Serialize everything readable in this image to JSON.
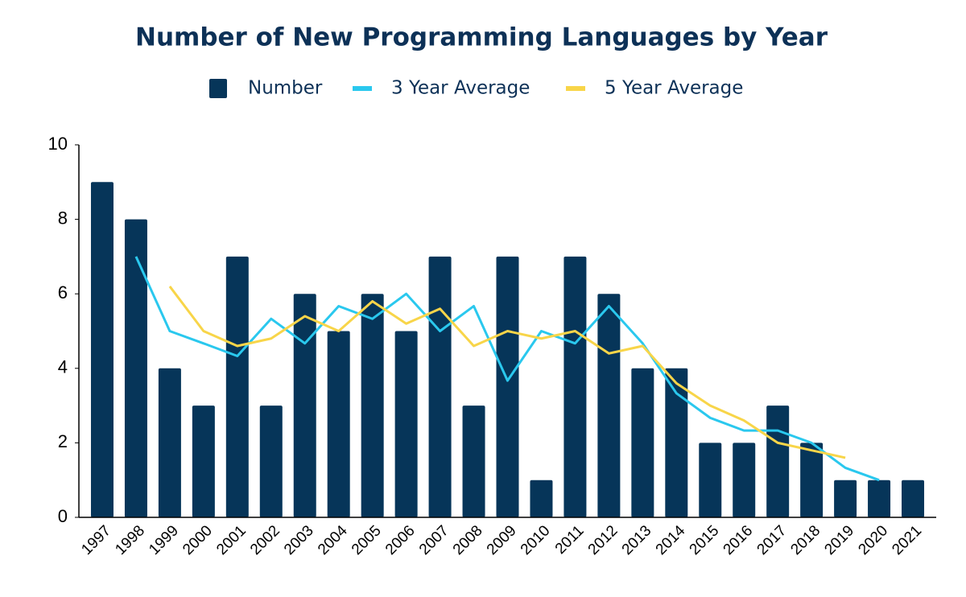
{
  "chart_data": {
    "type": "bar",
    "title": "Number of New Programming Languages by Year",
    "categories": [
      "1997",
      "1998",
      "1999",
      "2000",
      "2001",
      "2002",
      "2003",
      "2004",
      "2005",
      "2006",
      "2007",
      "2008",
      "2009",
      "2010",
      "2011",
      "2012",
      "2013",
      "2014",
      "2015",
      "2016",
      "2017",
      "2018",
      "2019",
      "2020",
      "2021"
    ],
    "series": [
      {
        "name": "Number",
        "type": "bar",
        "color": "#063559",
        "values": [
          9,
          8,
          4,
          3,
          7,
          3,
          6,
          5,
          6,
          5,
          7,
          3,
          7,
          1,
          7,
          6,
          4,
          4,
          2,
          2,
          3,
          2,
          1,
          1,
          1
        ]
      },
      {
        "name": "3 Year Average",
        "type": "line",
        "color": "#2ac8ee",
        "values": [
          null,
          7,
          5,
          4.67,
          4.33,
          5.33,
          4.67,
          5.67,
          5.33,
          6,
          5,
          5.67,
          3.67,
          5,
          4.67,
          5.67,
          4.67,
          3.33,
          2.67,
          2.33,
          2.33,
          2,
          1.33,
          1,
          null
        ]
      },
      {
        "name": "5 Year Average",
        "type": "line",
        "color": "#f8d549",
        "values": [
          null,
          null,
          6.2,
          5,
          4.6,
          4.8,
          5.4,
          5,
          5.8,
          5.2,
          5.6,
          4.6,
          5,
          4.8,
          5,
          4.4,
          4.6,
          3.6,
          3,
          2.6,
          2,
          1.8,
          1.6,
          null,
          null
        ]
      }
    ],
    "ylim": [
      0,
      10
    ],
    "yticks": [
      0,
      2,
      4,
      6,
      8,
      10
    ],
    "grid": false,
    "legend": "top"
  }
}
